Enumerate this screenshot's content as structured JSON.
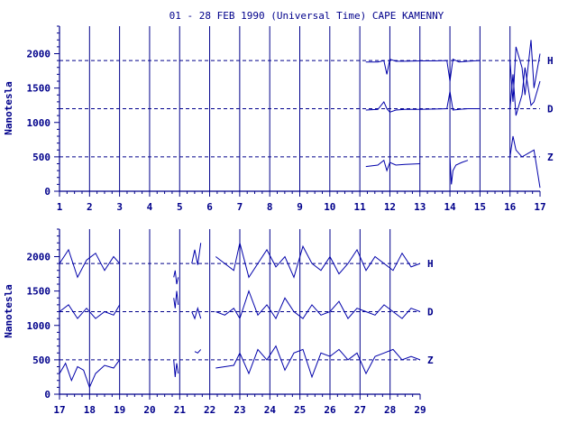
{
  "chart_data": {
    "type": "line",
    "title": "01 - 28 FEB 1990 (Universal Time) CAPE KAMENNY",
    "ylabel": "Nanotesla",
    "ylim": [
      0,
      2400
    ],
    "yticks": [
      0,
      500,
      1000,
      1500,
      2000
    ],
    "reference_levels": [
      {
        "name": "H",
        "value": 1900
      },
      {
        "name": "D",
        "value": 1200
      },
      {
        "name": "Z",
        "value": 500
      }
    ],
    "color": "#0000aa",
    "panels": [
      {
        "xlim": [
          1,
          17
        ],
        "xticks": [
          "1",
          "2",
          "3",
          "4",
          "5",
          "6",
          "7",
          "8",
          "9",
          "10",
          "11",
          "12",
          "13",
          "14",
          "15",
          "16",
          "17"
        ],
        "series": [
          {
            "name": "H",
            "segments": [
              {
                "x": [
                  11.2,
                  11.6,
                  11.8,
                  11.9,
                  12.0,
                  12.2,
                  12.5,
                  13.0,
                  13.5,
                  13.9,
                  14.0,
                  14.1,
                  14.3,
                  14.6,
                  15.0
                ],
                "y": [
                  1880,
                  1880,
                  1900,
                  1700,
                  1920,
                  1890,
                  1890,
                  1895,
                  1895,
                  1900,
                  1600,
                  1920,
                  1880,
                  1890,
                  1900
                ]
              },
              {
                "x": [
                  16.0,
                  16.1,
                  16.2,
                  16.4,
                  16.5,
                  16.7,
                  16.8,
                  17.0
                ],
                "y": [
                  1900,
                  1300,
                  2100,
                  1800,
                  1400,
                  2200,
                  1500,
                  2000
                ]
              }
            ]
          },
          {
            "name": "D",
            "segments": [
              {
                "x": [
                  11.2,
                  11.6,
                  11.8,
                  11.9,
                  12.0,
                  12.2,
                  12.5,
                  13.0,
                  13.5,
                  13.9,
                  14.0,
                  14.1,
                  14.3,
                  14.6,
                  15.0
                ],
                "y": [
                  1180,
                  1190,
                  1300,
                  1200,
                  1150,
                  1180,
                  1190,
                  1190,
                  1195,
                  1200,
                  1450,
                  1180,
                  1190,
                  1200,
                  1200
                ]
              },
              {
                "x": [
                  16.0,
                  16.1,
                  16.2,
                  16.4,
                  16.5,
                  16.7,
                  16.8,
                  17.0
                ],
                "y": [
                  1200,
                  1700,
                  1100,
                  1400,
                  1800,
                  1250,
                  1300,
                  1600
                ]
              }
            ]
          },
          {
            "name": "Z",
            "segments": [
              {
                "x": [
                  11.2,
                  11.6,
                  11.8,
                  11.9,
                  12.0,
                  12.2,
                  12.5,
                  13.0
                ],
                "y": [
                  360,
                  380,
                  450,
                  300,
                  420,
                  380,
                  390,
                  400
                ]
              },
              {
                "x": [
                  14.0,
                  14.05,
                  14.1,
                  14.2,
                  14.4,
                  14.6
                ],
                "y": [
                  480,
                  100,
                  300,
                  380,
                  420,
                  450
                ]
              },
              {
                "x": [
                  16.0,
                  16.1,
                  16.2,
                  16.4,
                  16.6,
                  16.8,
                  17.0
                ],
                "y": [
                  500,
                  800,
                  600,
                  500,
                  550,
                  600,
                  50
                ]
              }
            ]
          }
        ]
      },
      {
        "xlim": [
          17,
          29
        ],
        "xticks": [
          "17",
          "18",
          "19",
          "20",
          "21",
          "22",
          "23",
          "24",
          "25",
          "26",
          "27",
          "28",
          "29"
        ],
        "series": [
          {
            "name": "H",
            "segments": [
              {
                "x": [
                  17.0,
                  17.3,
                  17.6,
                  17.9,
                  18.2,
                  18.5,
                  18.8,
                  19.0
                ],
                "y": [
                  1900,
                  2100,
                  1700,
                  1950,
                  2050,
                  1800,
                  2000,
                  1900
                ]
              },
              {
                "x": [
                  20.8,
                  20.85,
                  20.9,
                  20.95
                ],
                "y": [
                  1700,
                  1800,
                  1600,
                  1700
                ]
              },
              {
                "x": [
                  21.4,
                  21.5,
                  21.6,
                  21.7
                ],
                "y": [
                  1900,
                  2100,
                  1880,
                  2200
                ]
              },
              {
                "x": [
                  22.2,
                  22.5,
                  22.8,
                  23.0,
                  23.3,
                  23.6,
                  23.9,
                  24.2,
                  24.5,
                  24.8,
                  25.1,
                  25.4,
                  25.7,
                  26.0,
                  26.3,
                  26.6,
                  26.9,
                  27.2,
                  27.5,
                  27.8,
                  28.1,
                  28.4,
                  28.7,
                  29.0
                ],
                "y": [
                  2000,
                  1900,
                  1800,
                  2200,
                  1700,
                  1900,
                  2100,
                  1850,
                  2000,
                  1700,
                  2150,
                  1900,
                  1800,
                  2000,
                  1750,
                  1900,
                  2100,
                  1800,
                  2000,
                  1900,
                  1800,
                  2050,
                  1850,
                  1900
                ]
              }
            ]
          },
          {
            "name": "D",
            "segments": [
              {
                "x": [
                  17.0,
                  17.3,
                  17.6,
                  17.9,
                  18.2,
                  18.5,
                  18.8,
                  19.0
                ],
                "y": [
                  1200,
                  1300,
                  1100,
                  1250,
                  1100,
                  1200,
                  1150,
                  1300
                ]
              },
              {
                "x": [
                  20.8,
                  20.85,
                  20.9,
                  20.95
                ],
                "y": [
                  1400,
                  1250,
                  1500,
                  1300
                ]
              },
              {
                "x": [
                  21.4,
                  21.5,
                  21.6,
                  21.7
                ],
                "y": [
                  1200,
                  1100,
                  1250,
                  1100
                ]
              },
              {
                "x": [
                  22.2,
                  22.5,
                  22.8,
                  23.0,
                  23.3,
                  23.6,
                  23.9,
                  24.2,
                  24.5,
                  24.8,
                  25.1,
                  25.4,
                  25.7,
                  26.0,
                  26.3,
                  26.6,
                  26.9,
                  27.2,
                  27.5,
                  27.8,
                  28.1,
                  28.4,
                  28.7,
                  29.0
                ],
                "y": [
                  1200,
                  1150,
                  1250,
                  1100,
                  1500,
                  1150,
                  1300,
                  1100,
                  1400,
                  1200,
                  1100,
                  1300,
                  1150,
                  1200,
                  1350,
                  1100,
                  1250,
                  1200,
                  1150,
                  1300,
                  1200,
                  1100,
                  1250,
                  1200
                ]
              }
            ]
          },
          {
            "name": "Z",
            "segments": [
              {
                "x": [
                  17.0,
                  17.2,
                  17.4,
                  17.6,
                  17.8,
                  18.0,
                  18.2,
                  18.5,
                  18.8,
                  19.0
                ],
                "y": [
                  300,
                  450,
                  200,
                  400,
                  350,
                  100,
                  300,
                  420,
                  380,
                  500
                ]
              },
              {
                "x": [
                  20.8,
                  20.85,
                  20.9,
                  20.95
                ],
                "y": [
                  500,
                  250,
                  450,
                  300
                ]
              },
              {
                "x": [
                  21.5,
                  21.6,
                  21.7
                ],
                "y": [
                  620,
                  600,
                  650
                ]
              },
              {
                "x": [
                  22.2,
                  22.5,
                  22.8,
                  23.0,
                  23.3,
                  23.6,
                  23.9,
                  24.2,
                  24.5,
                  24.8,
                  25.1,
                  25.4,
                  25.7,
                  26.0,
                  26.3,
                  26.6,
                  26.9,
                  27.2,
                  27.5,
                  27.8,
                  28.1,
                  28.4,
                  28.7,
                  29.0
                ],
                "y": [
                  380,
                  400,
                  420,
                  600,
                  300,
                  650,
                  500,
                  700,
                  350,
                  600,
                  650,
                  250,
                  600,
                  550,
                  650,
                  500,
                  600,
                  300,
                  550,
                  600,
                  650,
                  500,
                  550,
                  500
                ]
              }
            ]
          }
        ]
      }
    ]
  }
}
